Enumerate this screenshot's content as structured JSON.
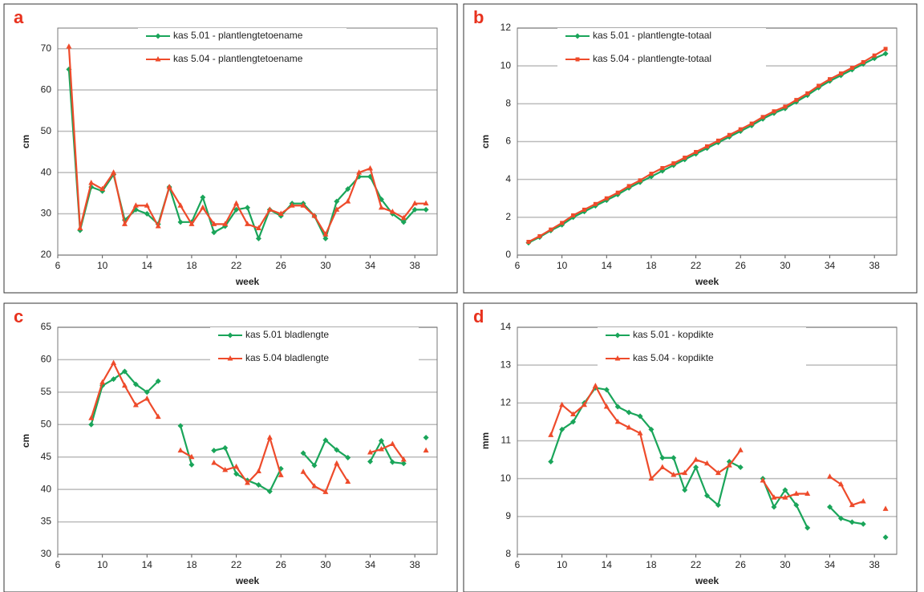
{
  "chart_data": [
    {
      "type": "line",
      "label": "a",
      "ylabel": "cm",
      "xlabel": "week",
      "legend": "upper center",
      "grid": true,
      "xlim": [
        6,
        40
      ],
      "xticks": [
        6,
        10,
        14,
        18,
        22,
        26,
        30,
        34,
        38
      ],
      "ylim": [
        20,
        75
      ],
      "yticks": [
        20,
        30,
        40,
        50,
        60,
        70
      ],
      "x": [
        7,
        8,
        9,
        10,
        11,
        12,
        13,
        14,
        15,
        16,
        17,
        18,
        19,
        20,
        21,
        22,
        23,
        24,
        25,
        26,
        27,
        28,
        29,
        30,
        31,
        32,
        33,
        34,
        35,
        36,
        37,
        38,
        39
      ],
      "series": [
        {
          "name": "kas 5.01 - plantlengtetoename",
          "color": "#1aa55a",
          "marker": "diamond",
          "values": [
            65,
            26,
            36.5,
            35.5,
            39.5,
            28.5,
            31,
            30,
            27.5,
            36.5,
            28,
            28,
            34,
            25.5,
            27,
            31,
            31.5,
            24,
            31,
            29.5,
            32.5,
            32.5,
            29.5,
            24,
            33,
            36,
            39,
            39,
            33.5,
            30,
            28,
            31,
            31
          ]
        },
        {
          "name": "kas 5.04 - plantlengtetoename",
          "color": "#ee4b2b",
          "marker": "triangle",
          "values": [
            70.5,
            26.5,
            37.5,
            36,
            40,
            27.5,
            32,
            32,
            27,
            36.5,
            32,
            27.5,
            31.5,
            27.5,
            27.5,
            32.5,
            27.5,
            26.5,
            31,
            30,
            32,
            32,
            29.5,
            25,
            31,
            33,
            40,
            41,
            31.5,
            30.5,
            29,
            32.5,
            32.5
          ]
        }
      ]
    },
    {
      "type": "line",
      "label": "b",
      "ylabel": "cm",
      "xlabel": "week",
      "legend": "upper left",
      "grid": true,
      "xlim": [
        6,
        40
      ],
      "xticks": [
        6,
        10,
        14,
        18,
        22,
        26,
        30,
        34,
        38
      ],
      "ylim": [
        0,
        12
      ],
      "yticks": [
        0,
        2,
        4,
        6,
        8,
        10,
        12
      ],
      "x": [
        7,
        8,
        9,
        10,
        11,
        12,
        13,
        14,
        15,
        16,
        17,
        18,
        19,
        20,
        21,
        22,
        23,
        24,
        25,
        26,
        27,
        28,
        29,
        30,
        31,
        32,
        33,
        34,
        35,
        36,
        37,
        38,
        39
      ],
      "series": [
        {
          "name": "kas 5.01 - plantlengte-totaal",
          "color": "#1aa55a",
          "marker": "diamond",
          "values": [
            0.65,
            0.95,
            1.3,
            1.6,
            2.0,
            2.3,
            2.6,
            2.9,
            3.2,
            3.55,
            3.85,
            4.15,
            4.45,
            4.75,
            5.05,
            5.35,
            5.65,
            5.95,
            6.25,
            6.55,
            6.85,
            7.2,
            7.5,
            7.75,
            8.1,
            8.45,
            8.85,
            9.2,
            9.5,
            9.8,
            10.1,
            10.4,
            10.65
          ]
        },
        {
          "name": "kas 5.04 - plantlengte-totaal",
          "color": "#ee4b2b",
          "marker": "square",
          "values": [
            0.7,
            1.0,
            1.35,
            1.7,
            2.1,
            2.4,
            2.7,
            3.0,
            3.3,
            3.65,
            3.95,
            4.3,
            4.6,
            4.85,
            5.15,
            5.45,
            5.75,
            6.05,
            6.35,
            6.65,
            6.95,
            7.3,
            7.6,
            7.85,
            8.2,
            8.55,
            8.95,
            9.3,
            9.6,
            9.9,
            10.2,
            10.55,
            10.9
          ]
        }
      ]
    },
    {
      "type": "line",
      "label": "c",
      "ylabel": "cm",
      "xlabel": "week",
      "legend": "upper right",
      "grid": true,
      "xlim": [
        6,
        40
      ],
      "xticks": [
        6,
        10,
        14,
        18,
        22,
        26,
        30,
        34,
        38
      ],
      "ylim": [
        30,
        65
      ],
      "yticks": [
        30,
        35,
        40,
        45,
        50,
        55,
        60,
        65
      ],
      "x": [
        9,
        10,
        11,
        12,
        13,
        14,
        15,
        16,
        17,
        18,
        19,
        20,
        21,
        22,
        23,
        24,
        25,
        26,
        27,
        28,
        29,
        30,
        31,
        32,
        33,
        34,
        35,
        36,
        37,
        38,
        39
      ],
      "series": [
        {
          "name": "kas 5.01 bladlengte",
          "color": "#1aa55a",
          "marker": "diamond",
          "values": [
            50,
            56,
            57,
            58.2,
            56.2,
            55,
            56.7,
            null,
            49.8,
            43.8,
            null,
            46,
            46.4,
            42.4,
            41.4,
            40.7,
            39.7,
            43.2,
            null,
            45.6,
            43.7,
            47.6,
            46.1,
            44.9,
            null,
            44.3,
            47.5,
            44.2,
            44,
            null,
            48
          ]
        },
        {
          "name": "kas 5.04 bladlengte",
          "color": "#ee4b2b",
          "marker": "triangle",
          "values": [
            51,
            56.5,
            59.5,
            56,
            53,
            54,
            51.2,
            null,
            46,
            45,
            null,
            44.1,
            43,
            43.5,
            41,
            42.8,
            48,
            42.2,
            null,
            42.7,
            40.5,
            39.6,
            44,
            41.2,
            null,
            45.7,
            46.2,
            47,
            44.6,
            null,
            46
          ]
        }
      ]
    },
    {
      "type": "line",
      "label": "d",
      "ylabel": "mm",
      "xlabel": "week",
      "legend": "upper center",
      "grid": true,
      "xlim": [
        6,
        40
      ],
      "xticks": [
        6,
        10,
        14,
        18,
        22,
        26,
        30,
        34,
        38
      ],
      "ylim": [
        8,
        14
      ],
      "yticks": [
        8,
        9,
        10,
        11,
        12,
        13,
        14
      ],
      "x": [
        9,
        10,
        11,
        12,
        13,
        14,
        15,
        16,
        17,
        18,
        19,
        20,
        21,
        22,
        23,
        24,
        25,
        26,
        27,
        28,
        29,
        30,
        31,
        32,
        33,
        34,
        35,
        36,
        37,
        38,
        39
      ],
      "series": [
        {
          "name": "kas 5.01 - kopdikte",
          "color": "#1aa55a",
          "marker": "diamond",
          "values": [
            10.45,
            11.3,
            11.5,
            12.0,
            12.4,
            12.35,
            11.9,
            11.75,
            11.65,
            11.3,
            10.55,
            10.55,
            9.7,
            10.3,
            9.55,
            9.3,
            10.45,
            10.3,
            null,
            10.0,
            9.25,
            9.7,
            9.3,
            8.7,
            null,
            9.25,
            8.95,
            8.85,
            8.8,
            null,
            8.45
          ]
        },
        {
          "name": "kas 5.04 - kopdikte",
          "color": "#ee4b2b",
          "marker": "triangle",
          "values": [
            11.15,
            11.95,
            11.7,
            11.95,
            12.45,
            11.9,
            11.5,
            11.35,
            11.2,
            10.0,
            10.3,
            10.1,
            10.15,
            10.5,
            10.4,
            10.15,
            10.35,
            10.75,
            null,
            9.95,
            9.5,
            9.5,
            9.6,
            9.6,
            null,
            10.05,
            9.85,
            9.3,
            9.4,
            null,
            9.2
          ]
        }
      ]
    }
  ]
}
